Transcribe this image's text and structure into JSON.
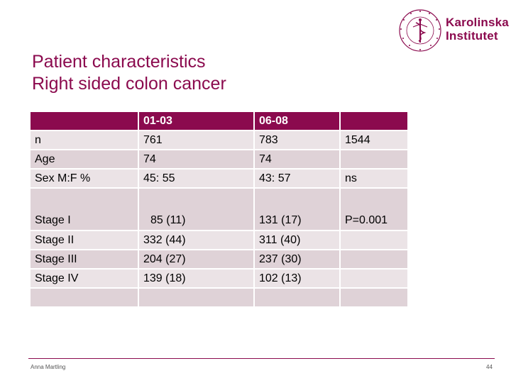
{
  "logo": {
    "line1": "Karolinska",
    "line2": "Institutet",
    "seal_text": "KAROLINSKA INSTITUTET ANNO 1810",
    "color": "#8b0a4e"
  },
  "title": {
    "line1": "Patient characteristics",
    "line2": "Right sided colon cancer"
  },
  "table": {
    "header": [
      "",
      "01-03",
      "06-08",
      ""
    ],
    "rows": [
      [
        "n",
        "761",
        "783",
        "1544"
      ],
      [
        "Age",
        "74",
        "74",
        ""
      ],
      [
        "Sex M:F %",
        "45: 55",
        "43: 57",
        "ns"
      ],
      [
        "Stage I",
        "85 (11)",
        "131 (17)",
        "P=0.001"
      ],
      [
        "Stage II",
        "332 (44)",
        "311 (40)",
        ""
      ],
      [
        "Stage III",
        "204 (27)",
        "237 (30)",
        ""
      ],
      [
        "Stage IV",
        "139 (18)",
        "102 (13)",
        ""
      ],
      [
        "",
        "",
        "",
        ""
      ]
    ]
  },
  "footer": {
    "author": "Anna Martling",
    "page": "44"
  },
  "colors": {
    "accent": "#8b0a4e",
    "row_light": "#ebe3e6",
    "row_dark": "#dfd2d7"
  }
}
